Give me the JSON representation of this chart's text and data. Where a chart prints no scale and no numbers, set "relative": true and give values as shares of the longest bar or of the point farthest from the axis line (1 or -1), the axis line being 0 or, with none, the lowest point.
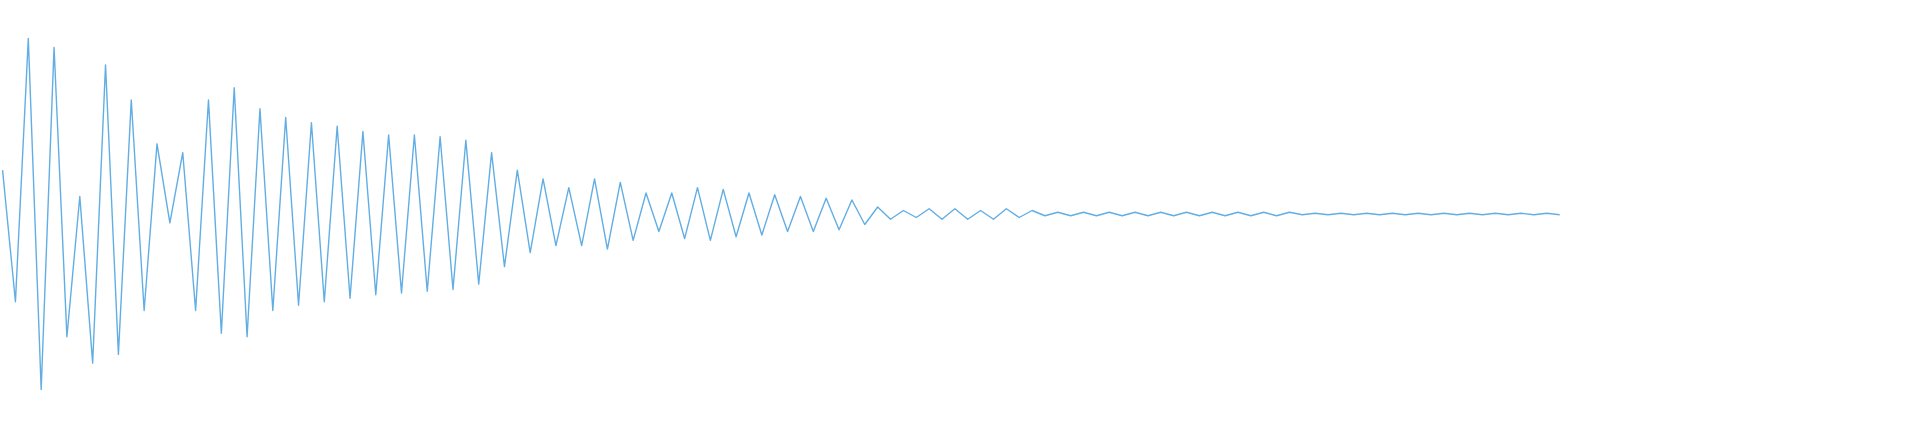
{
  "chart_data": {
    "type": "line",
    "relative": true,
    "categories": [
      null,
      null,
      null,
      null,
      null,
      null,
      null,
      null,
      null,
      null,
      null,
      null,
      null,
      null,
      null,
      null,
      null,
      null,
      null,
      null,
      null,
      null,
      null,
      null,
      null,
      null,
      null,
      null,
      null,
      null,
      null,
      null,
      null,
      null,
      null,
      null,
      null,
      null,
      null,
      null,
      null,
      null,
      null,
      null,
      null,
      null,
      null,
      null,
      null,
      null,
      null,
      null,
      null,
      null,
      null,
      null,
      null,
      null,
      null,
      null,
      null,
      null,
      null,
      null,
      null,
      null,
      null,
      null,
      null,
      null,
      null,
      null,
      null,
      null,
      null,
      null,
      null,
      null,
      null,
      null,
      null,
      null,
      null,
      null,
      null,
      null,
      null,
      null,
      null,
      null,
      null,
      null,
      null,
      null,
      null,
      null,
      null,
      null,
      null,
      null,
      null,
      null,
      null,
      null,
      null,
      null,
      null,
      null,
      null,
      null,
      null,
      null,
      null,
      null,
      null,
      null,
      null,
      null,
      null,
      null,
      null,
      null,
      null,
      null,
      null,
      null,
      null,
      null,
      null,
      null,
      null,
      null,
      null,
      null,
      null,
      null,
      null,
      null,
      null,
      null,
      null,
      null,
      null,
      null,
      null,
      null,
      null,
      null,
      null,
      null
    ],
    "series": [
      {
        "color": "#62aee4",
        "values": [
          0.625,
          0.25,
          1.0,
          0,
          0.975,
          0.15,
          0.55,
          0.075,
          0.925,
          0.1,
          0.825,
          0.225,
          0.7,
          0.475,
          0.675,
          0.225,
          0.825,
          0.16,
          0.86,
          0.15,
          0.8,
          0.225,
          0.775,
          0.24,
          0.76,
          0.25,
          0.75,
          0.26,
          0.735,
          0.27,
          0.725,
          0.275,
          0.725,
          0.28,
          0.72,
          0.285,
          0.71,
          0.3,
          0.675,
          0.35,
          0.625,
          0.39,
          0.6,
          0.41,
          0.575,
          0.41,
          0.6,
          0.4,
          0.59,
          0.425,
          0.56,
          0.45,
          0.56,
          0.43,
          0.575,
          0.425,
          0.57,
          0.435,
          0.56,
          0.44,
          0.555,
          0.45,
          0.55,
          0.45,
          0.545,
          0.455,
          0.54,
          0.47,
          0.52,
          0.485,
          0.51,
          0.49,
          0.515,
          0.485,
          0.515,
          0.485,
          0.51,
          0.485,
          0.515,
          0.49,
          0.51,
          0.495,
          0.505,
          0.495,
          0.505,
          0.495,
          0.505,
          0.495,
          0.505,
          0.495,
          0.505,
          0.495,
          0.505,
          0.495,
          0.505,
          0.495,
          0.505,
          0.495,
          0.505,
          0.495,
          0.505,
          0.498,
          0.502,
          0.498,
          0.502,
          0.498,
          0.502,
          0.498,
          0.502,
          0.498,
          0.502,
          0.498,
          0.502,
          0.498,
          0.502,
          0.498,
          0.502,
          0.498,
          0.502,
          0.498,
          0.502,
          0.498,
          null,
          null,
          null,
          null,
          null,
          null,
          null,
          null,
          null,
          null,
          null,
          null,
          null,
          null,
          null,
          null,
          null,
          null,
          null,
          null,
          null,
          null,
          null,
          null,
          null,
          null,
          null,
          null
        ]
      }
    ]
  }
}
